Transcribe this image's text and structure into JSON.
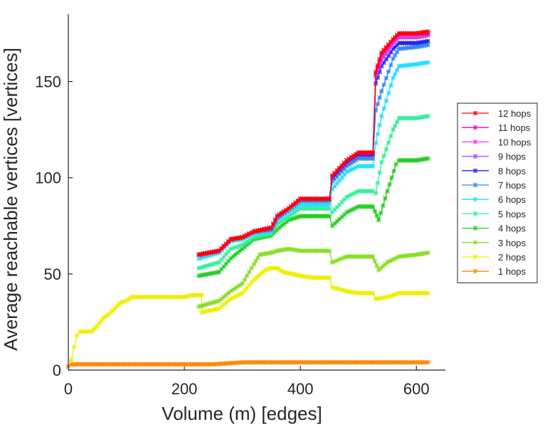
{
  "chart_data": {
    "type": "line",
    "title": "",
    "xlabel": "Volume (m) [edges]",
    "ylabel": "Average reachable vertices [vertices]",
    "xlim": [
      0,
      650
    ],
    "ylim": [
      0,
      185
    ],
    "xticks": [
      0,
      200,
      400,
      600
    ],
    "yticks": [
      0,
      50,
      100,
      150
    ],
    "legend_position": "right",
    "series": [
      {
        "name": "12 hops",
        "color": "#ff0000",
        "points": [
          [
            225,
            60
          ],
          [
            260,
            62
          ],
          [
            280,
            68
          ],
          [
            300,
            69
          ],
          [
            320,
            72
          ],
          [
            350,
            74
          ],
          [
            360,
            80
          ],
          [
            380,
            84
          ],
          [
            400,
            89
          ],
          [
            450,
            89
          ],
          [
            455,
            101
          ],
          [
            480,
            109
          ],
          [
            500,
            113
          ],
          [
            525,
            113
          ],
          [
            530,
            155
          ],
          [
            540,
            165
          ],
          [
            560,
            172
          ],
          [
            570,
            175
          ],
          [
            600,
            175
          ],
          [
            620,
            176
          ]
        ]
      },
      {
        "name": "11 hops",
        "color": "#ff00aa",
        "points": [
          [
            225,
            60
          ],
          [
            260,
            62
          ],
          [
            280,
            68
          ],
          [
            300,
            69
          ],
          [
            320,
            72
          ],
          [
            350,
            74
          ],
          [
            360,
            80
          ],
          [
            380,
            84
          ],
          [
            400,
            89
          ],
          [
            450,
            89
          ],
          [
            455,
            101
          ],
          [
            480,
            109
          ],
          [
            500,
            113
          ],
          [
            525,
            113
          ],
          [
            530,
            154
          ],
          [
            540,
            164
          ],
          [
            560,
            172
          ],
          [
            570,
            175
          ],
          [
            600,
            175
          ],
          [
            620,
            175
          ]
        ]
      },
      {
        "name": "10 hops",
        "color": "#ff33ff",
        "points": [
          [
            225,
            60
          ],
          [
            260,
            62
          ],
          [
            280,
            68
          ],
          [
            300,
            69
          ],
          [
            320,
            72
          ],
          [
            350,
            74
          ],
          [
            360,
            80
          ],
          [
            380,
            84
          ],
          [
            400,
            89
          ],
          [
            450,
            89
          ],
          [
            455,
            101
          ],
          [
            480,
            109
          ],
          [
            500,
            113
          ],
          [
            525,
            113
          ],
          [
            530,
            154
          ],
          [
            540,
            163
          ],
          [
            560,
            171
          ],
          [
            570,
            174
          ],
          [
            600,
            174
          ],
          [
            620,
            175
          ]
        ]
      },
      {
        "name": "9 hops",
        "color": "#aa44ff",
        "points": [
          [
            225,
            60
          ],
          [
            260,
            62
          ],
          [
            280,
            68
          ],
          [
            300,
            69
          ],
          [
            320,
            72
          ],
          [
            350,
            74
          ],
          [
            360,
            80
          ],
          [
            380,
            84
          ],
          [
            400,
            89
          ],
          [
            450,
            89
          ],
          [
            455,
            101
          ],
          [
            480,
            109
          ],
          [
            500,
            113
          ],
          [
            525,
            113
          ],
          [
            530,
            153
          ],
          [
            540,
            161
          ],
          [
            560,
            170
          ],
          [
            570,
            173
          ],
          [
            600,
            173
          ],
          [
            620,
            174
          ]
        ]
      },
      {
        "name": "8 hops",
        "color": "#2222ee",
        "points": [
          [
            225,
            60
          ],
          [
            260,
            62
          ],
          [
            280,
            68
          ],
          [
            300,
            69
          ],
          [
            320,
            72
          ],
          [
            350,
            74
          ],
          [
            360,
            80
          ],
          [
            380,
            84
          ],
          [
            400,
            89
          ],
          [
            450,
            89
          ],
          [
            455,
            100
          ],
          [
            480,
            108
          ],
          [
            500,
            112
          ],
          [
            525,
            112
          ],
          [
            530,
            149
          ],
          [
            540,
            158
          ],
          [
            560,
            167
          ],
          [
            570,
            170
          ],
          [
            600,
            170
          ],
          [
            620,
            171
          ]
        ]
      },
      {
        "name": "7 hops",
        "color": "#3388ee",
        "points": [
          [
            225,
            60
          ],
          [
            260,
            62
          ],
          [
            280,
            68
          ],
          [
            300,
            69
          ],
          [
            320,
            72
          ],
          [
            350,
            73
          ],
          [
            360,
            79
          ],
          [
            380,
            84
          ],
          [
            400,
            88
          ],
          [
            450,
            88
          ],
          [
            455,
            98
          ],
          [
            480,
            106
          ],
          [
            500,
            110
          ],
          [
            525,
            110
          ],
          [
            530,
            135
          ],
          [
            540,
            145
          ],
          [
            560,
            162
          ],
          [
            570,
            167
          ],
          [
            600,
            168
          ],
          [
            620,
            169
          ]
        ]
      },
      {
        "name": "6 hops",
        "color": "#22ddff",
        "points": [
          [
            225,
            58
          ],
          [
            260,
            61
          ],
          [
            280,
            67
          ],
          [
            300,
            68
          ],
          [
            320,
            71
          ],
          [
            350,
            72
          ],
          [
            360,
            78
          ],
          [
            380,
            82
          ],
          [
            400,
            86
          ],
          [
            450,
            86
          ],
          [
            455,
            94
          ],
          [
            480,
            103
          ],
          [
            500,
            106
          ],
          [
            525,
            106
          ],
          [
            530,
            118
          ],
          [
            540,
            132
          ],
          [
            560,
            152
          ],
          [
            570,
            158
          ],
          [
            600,
            159
          ],
          [
            620,
            160
          ]
        ]
      },
      {
        "name": "5 hops",
        "color": "#33ee99",
        "points": [
          [
            225,
            53
          ],
          [
            260,
            56
          ],
          [
            280,
            63
          ],
          [
            300,
            65
          ],
          [
            320,
            69
          ],
          [
            350,
            71
          ],
          [
            360,
            76
          ],
          [
            380,
            80
          ],
          [
            400,
            84
          ],
          [
            450,
            84
          ],
          [
            455,
            82
          ],
          [
            480,
            90
          ],
          [
            500,
            93
          ],
          [
            525,
            93
          ],
          [
            530,
            92
          ],
          [
            540,
            108
          ],
          [
            560,
            125
          ],
          [
            570,
            131
          ],
          [
            600,
            131
          ],
          [
            620,
            132
          ]
        ]
      },
      {
        "name": "4 hops",
        "color": "#22cc22",
        "points": [
          [
            225,
            49
          ],
          [
            260,
            51
          ],
          [
            280,
            58
          ],
          [
            300,
            63
          ],
          [
            320,
            68
          ],
          [
            350,
            70
          ],
          [
            360,
            73
          ],
          [
            380,
            78
          ],
          [
            400,
            80
          ],
          [
            450,
            80
          ],
          [
            455,
            75
          ],
          [
            480,
            82
          ],
          [
            500,
            85
          ],
          [
            525,
            85
          ],
          [
            535,
            78
          ],
          [
            550,
            93
          ],
          [
            565,
            107
          ],
          [
            570,
            109
          ],
          [
            600,
            109
          ],
          [
            620,
            110
          ]
        ]
      },
      {
        "name": "3 hops",
        "color": "#88dd22",
        "points": [
          [
            225,
            33
          ],
          [
            260,
            36
          ],
          [
            280,
            41
          ],
          [
            300,
            45
          ],
          [
            320,
            55
          ],
          [
            330,
            60
          ],
          [
            350,
            61
          ],
          [
            360,
            62
          ],
          [
            380,
            63
          ],
          [
            400,
            62
          ],
          [
            450,
            62
          ],
          [
            455,
            56
          ],
          [
            480,
            59
          ],
          [
            500,
            59
          ],
          [
            525,
            59
          ],
          [
            535,
            52
          ],
          [
            550,
            56
          ],
          [
            570,
            59
          ],
          [
            600,
            60
          ],
          [
            620,
            61
          ]
        ]
      },
      {
        "name": "2 hops",
        "color": "#eeee00",
        "points": [
          [
            5,
            5
          ],
          [
            10,
            12
          ],
          [
            15,
            18
          ],
          [
            20,
            20
          ],
          [
            30,
            20
          ],
          [
            40,
            20
          ],
          [
            50,
            23
          ],
          [
            60,
            27
          ],
          [
            70,
            29
          ],
          [
            80,
            32
          ],
          [
            90,
            35
          ],
          [
            100,
            36
          ],
          [
            110,
            38
          ],
          [
            150,
            38
          ],
          [
            200,
            38
          ],
          [
            215,
            39
          ],
          [
            230,
            39
          ],
          [
            230,
            30
          ],
          [
            260,
            32
          ],
          [
            280,
            37
          ],
          [
            300,
            40
          ],
          [
            320,
            47
          ],
          [
            340,
            52
          ],
          [
            350,
            53
          ],
          [
            360,
            53
          ],
          [
            370,
            51
          ],
          [
            400,
            49
          ],
          [
            420,
            48
          ],
          [
            450,
            48
          ],
          [
            455,
            43
          ],
          [
            480,
            41
          ],
          [
            500,
            40
          ],
          [
            525,
            40
          ],
          [
            530,
            37
          ],
          [
            550,
            38
          ],
          [
            570,
            40
          ],
          [
            600,
            40
          ],
          [
            620,
            40
          ]
        ]
      },
      {
        "name": "1 hops",
        "color": "#ff8800",
        "points": [
          [
            0,
            2
          ],
          [
            5,
            3
          ],
          [
            50,
            3
          ],
          [
            100,
            3
          ],
          [
            150,
            3
          ],
          [
            200,
            3
          ],
          [
            250,
            3
          ],
          [
            300,
            4
          ],
          [
            350,
            4
          ],
          [
            400,
            4
          ],
          [
            450,
            4
          ],
          [
            500,
            4
          ],
          [
            550,
            4
          ],
          [
            600,
            4
          ],
          [
            620,
            4
          ]
        ]
      }
    ]
  }
}
